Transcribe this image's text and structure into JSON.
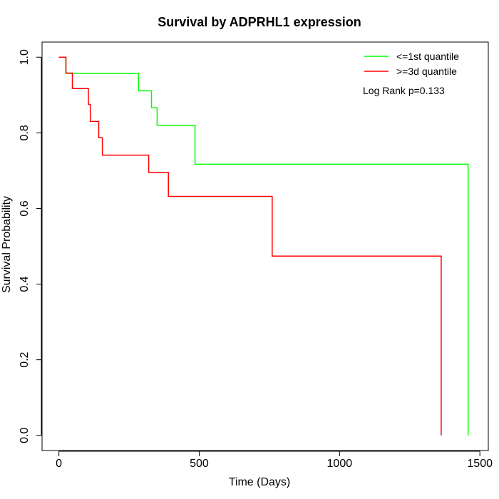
{
  "chart_data": {
    "type": "line",
    "step": true,
    "title": "Survival by ADPRHL1 expression",
    "xlabel": "Time (Days)",
    "ylabel": "Survival Probability",
    "xlim": [
      -60,
      1530
    ],
    "ylim": [
      -0.04,
      1.04
    ],
    "xticks": [
      0,
      500,
      1000,
      1500
    ],
    "xtick_labels": [
      "0",
      "500",
      "1000",
      "1500"
    ],
    "yticks": [
      0,
      0.2,
      0.4,
      0.6,
      0.8,
      1.0
    ],
    "ytick_labels": [
      "0.0",
      "0.2",
      "0.4",
      "0.6",
      "0.8",
      "1.0"
    ],
    "grid": false,
    "legend_position": "top-right",
    "annotation": "Log Rank p=0.133",
    "series": [
      {
        "name": "<=1st quantile",
        "color": "#00ff00",
        "x": [
          0,
          25,
          284,
          330,
          350,
          485,
          1458,
          1458
        ],
        "y": [
          1.0,
          0.957,
          0.911,
          0.866,
          0.82,
          0.717,
          0.717,
          0.0
        ]
      },
      {
        "name": ">=3d quantile",
        "color": "#ff0000",
        "x": [
          0,
          25,
          48,
          105,
          112,
          142,
          155,
          320,
          390,
          760,
          1362,
          1362
        ],
        "y": [
          1.0,
          0.958,
          0.917,
          0.875,
          0.83,
          0.787,
          0.741,
          0.695,
          0.632,
          0.474,
          0.474,
          0.0
        ]
      }
    ]
  }
}
